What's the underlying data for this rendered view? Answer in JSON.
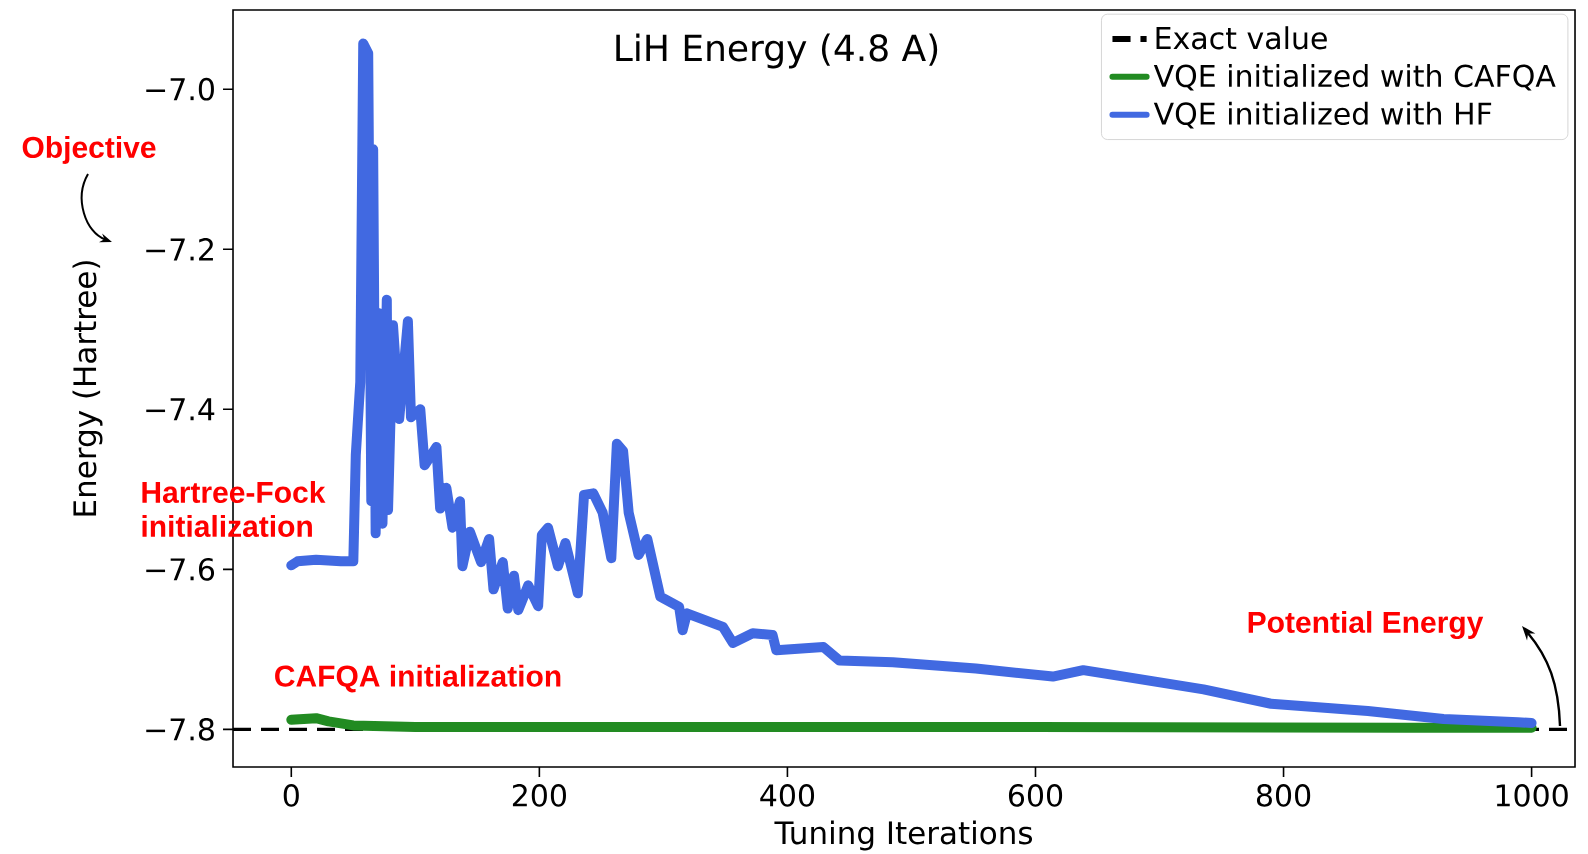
{
  "chart_data": {
    "type": "line",
    "title": "LiH Energy (4.8 A)",
    "xlabel": "Tuning Iterations",
    "ylabel": "Energy (Hartree)",
    "annotations": [
      "Objective",
      "Hartree-Fock initialization",
      "CAFQA initialization",
      "Potential Energy"
    ],
    "xlim": [
      -47,
      1035
    ],
    "ylim": [
      -7.847,
      -6.901
    ],
    "xticks": [
      0,
      200,
      400,
      600,
      800,
      1000
    ],
    "yticks": [
      {
        "value": -7.8,
        "label": "−7.8"
      },
      {
        "value": -7.6,
        "label": "−7.6"
      },
      {
        "value": -7.4,
        "label": "−7.4"
      },
      {
        "value": -7.2,
        "label": "−7.2"
      },
      {
        "value": -7.0,
        "label": "−7.0"
      }
    ],
    "ref_lines": [
      {
        "axis": "y",
        "value": -7.8,
        "label": "Exact value",
        "color": "#000000",
        "line_style": "dashed"
      }
    ],
    "legend": "top right",
    "series": [
      {
        "name": "VQE initialized with CAFQA",
        "color": "#228b22",
        "x": [
          0,
          10,
          20,
          30,
          50,
          100,
          300,
          600,
          900,
          1000
        ],
        "values": [
          -7.788,
          -7.787,
          -7.786,
          -7.79,
          -7.795,
          -7.797,
          -7.797,
          -7.797,
          -7.798,
          -7.798
        ]
      },
      {
        "name": "VQE initialized with HF",
        "color": "#4169e1",
        "x": [
          0,
          5,
          20,
          40,
          50,
          52,
          55.6,
          58,
          62,
          64.5,
          66,
          68,
          71,
          73.5,
          77,
          78,
          82,
          87,
          94,
          96.5,
          104,
          107.5,
          117,
          120,
          125,
          130,
          136,
          138,
          144,
          153,
          159.5,
          163,
          170.5,
          174.5,
          179.5,
          183,
          191,
          199,
          202,
          207,
          215,
          221,
          231,
          236,
          243.5,
          251,
          258,
          262.5,
          267.5,
          272,
          280,
          287,
          297.5,
          312.7,
          315.5,
          319,
          348,
          356,
          372,
          388,
          391,
          429,
          442,
          485,
          552,
          614,
          638.5,
          679,
          735.5,
          790,
          868,
          929,
          989,
          1000
        ],
        "values": [
          -7.595,
          -7.59,
          -7.588,
          -7.59,
          -7.59,
          -7.457,
          -7.366,
          -6.943,
          -6.955,
          -7.515,
          -7.075,
          -7.555,
          -7.28,
          -7.543,
          -7.263,
          -7.526,
          -7.295,
          -7.412,
          -7.29,
          -7.41,
          -7.4,
          -7.47,
          -7.447,
          -7.524,
          -7.498,
          -7.548,
          -7.515,
          -7.596,
          -7.553,
          -7.591,
          -7.562,
          -7.625,
          -7.591,
          -7.649,
          -7.608,
          -7.651,
          -7.62,
          -7.646,
          -7.557,
          -7.548,
          -7.596,
          -7.567,
          -7.63,
          -7.507,
          -7.505,
          -7.529,
          -7.586,
          -7.443,
          -7.452,
          -7.529,
          -7.582,
          -7.562,
          -7.634,
          -7.647,
          -7.676,
          -7.655,
          -7.672,
          -7.692,
          -7.68,
          -7.682,
          -7.701,
          -7.697,
          -7.714,
          -7.716,
          -7.724,
          -7.734,
          -7.726,
          -7.736,
          -7.75,
          -7.768,
          -7.777,
          -7.787,
          -7.791,
          -7.792
        ]
      }
    ]
  }
}
